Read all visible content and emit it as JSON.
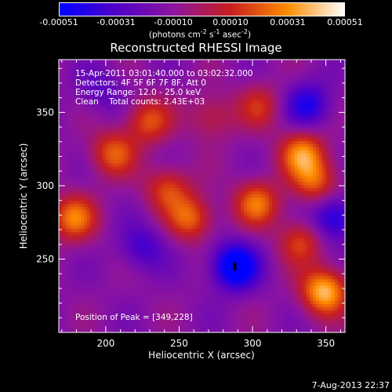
{
  "colorbar": {
    "ticks": [
      "-0.00051",
      "-0.00031",
      "-0.00010",
      "0.00010",
      "0.00031",
      "0.00051"
    ],
    "unit_base": "(photons cm",
    "unit_exp1": "-2",
    "unit_mid1": " s",
    "unit_exp2": "-1",
    "unit_mid2": " asec",
    "unit_exp3": "-2",
    "unit_end": ")"
  },
  "info": {
    "line1": "15-Apr-2011 03:01:40.000 to 03:02:32.000",
    "line2": "Detectors: 4F 5F 6F 7F 8F, Att 0",
    "line3": "Energy Range: 12.0 - 25.0 keV",
    "line4": "Clean    Total counts: 2.43E+03",
    "peak": "Position of Peak = [349,228]"
  },
  "footer": "7-Aug-2013 22:37",
  "colors": {
    "axis": "#ffffff",
    "background": "#000000",
    "peak_marker": "#000000"
  },
  "chart_data": {
    "type": "heatmap",
    "title": "Reconstructed RHESSI Image",
    "xlabel": "Heliocentric X (arcsec)",
    "ylabel": "Heliocentric Y (arcsec)",
    "xlim": [
      168,
      363
    ],
    "ylim": [
      200,
      386
    ],
    "xticks": [
      200,
      250,
      300,
      350
    ],
    "yticks": [
      250,
      300,
      350
    ],
    "colorbar_range": [
      -0.00051,
      0.00051
    ],
    "colormap": [
      "#0000ff",
      "#5000c8",
      "#8c14a0",
      "#c81e1e",
      "#ff8c00",
      "#ffffff"
    ],
    "peak_position": [
      349,
      228
    ],
    "min_marker_position": [
      288,
      245
    ],
    "blobs": [
      {
        "x": 178,
        "y": 278,
        "v": 0.00038
      },
      {
        "x": 205,
        "y": 322,
        "v": 0.00032
      },
      {
        "x": 229,
        "y": 344,
        "v": 0.0003
      },
      {
        "x": 242,
        "y": 298,
        "v": 0.00028
      },
      {
        "x": 258,
        "y": 278,
        "v": 0.00034
      },
      {
        "x": 303,
        "y": 288,
        "v": 0.00036
      },
      {
        "x": 334,
        "y": 322,
        "v": 0.0004
      },
      {
        "x": 343,
        "y": 303,
        "v": 0.00032
      },
      {
        "x": 349,
        "y": 228,
        "v": 0.00051
      },
      {
        "x": 333,
        "y": 262,
        "v": 0.00028
      },
      {
        "x": 272,
        "y": 347,
        "v": 0.0002
      },
      {
        "x": 305,
        "y": 354,
        "v": 0.00022
      },
      {
        "x": 288,
        "y": 245,
        "v": -0.00051
      },
      {
        "x": 355,
        "y": 278,
        "v": -0.00035
      },
      {
        "x": 338,
        "y": 355,
        "v": -0.0003
      },
      {
        "x": 225,
        "y": 258,
        "v": -0.00022
      },
      {
        "x": 196,
        "y": 365,
        "v": -0.00015
      }
    ]
  }
}
